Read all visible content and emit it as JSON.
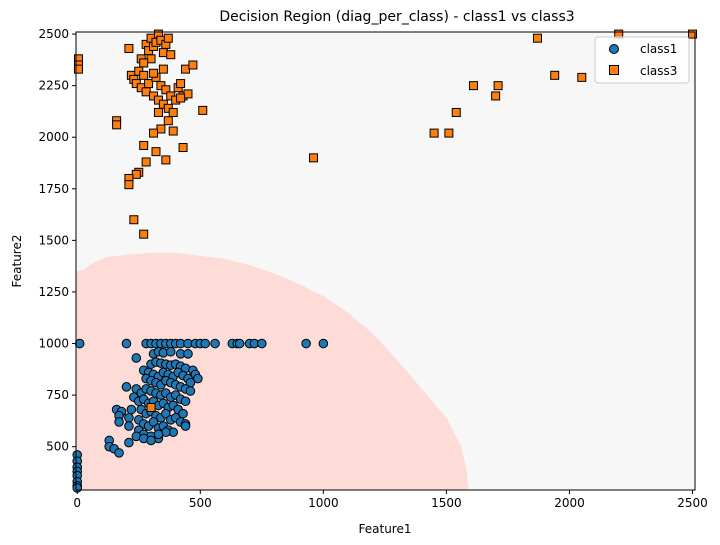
{
  "chart_data": {
    "type": "scatter",
    "title": "Decision Region (diag_per_class) - class1 vs class3",
    "xlabel": "Feature1",
    "ylabel": "Feature2",
    "xlim": [
      -5,
      2510
    ],
    "ylim": [
      290,
      2510
    ],
    "xticks": [
      0,
      500,
      1000,
      1500,
      2000,
      2500
    ],
    "yticks": [
      500,
      750,
      1000,
      1250,
      1500,
      1750,
      2000,
      2250,
      2500
    ],
    "grid": false,
    "legend_position": "top-right",
    "background_color": "#f7f7f7",
    "region": {
      "class": "class1",
      "color": "#fddcd8",
      "boundary": [
        [
          0,
          1350
        ],
        [
          30,
          1360
        ],
        [
          50,
          1380
        ],
        [
          80,
          1400
        ],
        [
          120,
          1420
        ],
        [
          200,
          1430
        ],
        [
          300,
          1440
        ],
        [
          400,
          1440
        ],
        [
          500,
          1425
        ],
        [
          600,
          1410
        ],
        [
          700,
          1380
        ],
        [
          800,
          1340
        ],
        [
          900,
          1290
        ],
        [
          1000,
          1230
        ],
        [
          1100,
          1150
        ],
        [
          1200,
          1050
        ],
        [
          1300,
          920
        ],
        [
          1400,
          780
        ],
        [
          1500,
          640
        ],
        [
          1560,
          500
        ],
        [
          1580,
          400
        ],
        [
          1590,
          290
        ]
      ]
    },
    "series": [
      {
        "name": "class1",
        "color": "#1f77b4",
        "marker": "circle",
        "points": [
          [
            10,
            1000
          ],
          [
            200,
            1000
          ],
          [
            280,
            1000
          ],
          [
            300,
            1000
          ],
          [
            320,
            1000
          ],
          [
            340,
            1000
          ],
          [
            360,
            1000
          ],
          [
            380,
            1000
          ],
          [
            400,
            1000
          ],
          [
            420,
            1000
          ],
          [
            450,
            1000
          ],
          [
            480,
            1000
          ],
          [
            500,
            1000
          ],
          [
            520,
            1000
          ],
          [
            560,
            1000
          ],
          [
            630,
            1000
          ],
          [
            650,
            1000
          ],
          [
            660,
            1000
          ],
          [
            700,
            1000
          ],
          [
            720,
            1000
          ],
          [
            750,
            1000
          ],
          [
            930,
            1000
          ],
          [
            1000,
            1000
          ],
          [
            240,
            930
          ],
          [
            310,
            950
          ],
          [
            330,
            960
          ],
          [
            350,
            955
          ],
          [
            380,
            960
          ],
          [
            420,
            950
          ],
          [
            450,
            950
          ],
          [
            300,
            900
          ],
          [
            320,
            910
          ],
          [
            340,
            905
          ],
          [
            360,
            900
          ],
          [
            380,
            895
          ],
          [
            400,
            900
          ],
          [
            420,
            890
          ],
          [
            440,
            880
          ],
          [
            470,
            870
          ],
          [
            480,
            850
          ],
          [
            490,
            830
          ],
          [
            270,
            870
          ],
          [
            290,
            860
          ],
          [
            310,
            850
          ],
          [
            330,
            840
          ],
          [
            350,
            860
          ],
          [
            370,
            850
          ],
          [
            390,
            840
          ],
          [
            410,
            860
          ],
          [
            430,
            845
          ],
          [
            450,
            830
          ],
          [
            460,
            810
          ],
          [
            280,
            830
          ],
          [
            300,
            820
          ],
          [
            320,
            810
          ],
          [
            340,
            800
          ],
          [
            360,
            820
          ],
          [
            380,
            810
          ],
          [
            400,
            800
          ],
          [
            420,
            790
          ],
          [
            440,
            780
          ],
          [
            460,
            770
          ],
          [
            200,
            790
          ],
          [
            240,
            780
          ],
          [
            260,
            760
          ],
          [
            280,
            780
          ],
          [
            300,
            770
          ],
          [
            320,
            760
          ],
          [
            340,
            750
          ],
          [
            360,
            760
          ],
          [
            380,
            740
          ],
          [
            400,
            750
          ],
          [
            420,
            730
          ],
          [
            440,
            720
          ],
          [
            230,
            740
          ],
          [
            250,
            720
          ],
          [
            270,
            730
          ],
          [
            290,
            710
          ],
          [
            310,
            720
          ],
          [
            330,
            700
          ],
          [
            350,
            710
          ],
          [
            370,
            690
          ],
          [
            390,
            700
          ],
          [
            410,
            680
          ],
          [
            430,
            660
          ],
          [
            160,
            680
          ],
          [
            180,
            670
          ],
          [
            220,
            680
          ],
          [
            260,
            680
          ],
          [
            280,
            660
          ],
          [
            300,
            670
          ],
          [
            320,
            650
          ],
          [
            340,
            640
          ],
          [
            360,
            660
          ],
          [
            380,
            630
          ],
          [
            400,
            640
          ],
          [
            420,
            620
          ],
          [
            440,
            610
          ],
          [
            170,
            650
          ],
          [
            210,
            640
          ],
          [
            250,
            630
          ],
          [
            270,
            610
          ],
          [
            290,
            600
          ],
          [
            310,
            620
          ],
          [
            330,
            590
          ],
          [
            350,
            600
          ],
          [
            370,
            580
          ],
          [
            390,
            570
          ],
          [
            170,
            620
          ],
          [
            210,
            600
          ],
          [
            250,
            580
          ],
          [
            270,
            560
          ],
          [
            300,
            550
          ],
          [
            330,
            540
          ],
          [
            360,
            570
          ],
          [
            440,
            600
          ],
          [
            130,
            530
          ],
          [
            210,
            520
          ],
          [
            240,
            550
          ],
          [
            270,
            540
          ],
          [
            300,
            530
          ],
          [
            330,
            560
          ],
          [
            130,
            500
          ],
          [
            150,
            490
          ],
          [
            170,
            470
          ],
          [
            0,
            460
          ],
          [
            0,
            430
          ],
          [
            0,
            400
          ],
          [
            0,
            380
          ],
          [
            0,
            360
          ],
          [
            0,
            330
          ],
          [
            0,
            310
          ],
          [
            0,
            300
          ]
        ]
      },
      {
        "name": "class3",
        "color": "#ff7f0e",
        "marker": "square",
        "points": [
          [
            5,
            2380
          ],
          [
            5,
            2350
          ],
          [
            5,
            2330
          ],
          [
            210,
            2430
          ],
          [
            220,
            2300
          ],
          [
            230,
            2280
          ],
          [
            240,
            2260
          ],
          [
            250,
            2320
          ],
          [
            260,
            2240
          ],
          [
            270,
            2300
          ],
          [
            280,
            2220
          ],
          [
            290,
            2260
          ],
          [
            300,
            2380
          ],
          [
            310,
            2200
          ],
          [
            320,
            2290
          ],
          [
            330,
            2180
          ],
          [
            340,
            2250
          ],
          [
            350,
            2160
          ],
          [
            360,
            2230
          ],
          [
            370,
            2140
          ],
          [
            380,
            2200
          ],
          [
            390,
            2120
          ],
          [
            400,
            2180
          ],
          [
            410,
            2240
          ],
          [
            420,
            2260
          ],
          [
            430,
            2200
          ],
          [
            440,
            2330
          ],
          [
            450,
            2210
          ],
          [
            470,
            2350
          ],
          [
            280,
            2450
          ],
          [
            290,
            2420
          ],
          [
            300,
            2480
          ],
          [
            310,
            2440
          ],
          [
            320,
            2460
          ],
          [
            330,
            2500
          ],
          [
            340,
            2470
          ],
          [
            350,
            2410
          ],
          [
            360,
            2450
          ],
          [
            370,
            2480
          ],
          [
            380,
            2400
          ],
          [
            260,
            2380
          ],
          [
            270,
            2360
          ],
          [
            350,
            2330
          ],
          [
            310,
            2310
          ],
          [
            330,
            2120
          ],
          [
            370,
            2080
          ],
          [
            340,
            2040
          ],
          [
            310,
            2020
          ],
          [
            390,
            2030
          ],
          [
            420,
            2190
          ],
          [
            510,
            2130
          ],
          [
            160,
            2080
          ],
          [
            160,
            2060
          ],
          [
            430,
            1950
          ],
          [
            270,
            1960
          ],
          [
            320,
            1930
          ],
          [
            360,
            1890
          ],
          [
            280,
            1880
          ],
          [
            250,
            1830
          ],
          [
            240,
            1820
          ],
          [
            210,
            1800
          ],
          [
            210,
            1770
          ],
          [
            230,
            1600
          ],
          [
            270,
            1530
          ],
          [
            300,
            690
          ],
          [
            960,
            1900
          ],
          [
            1450,
            2020
          ],
          [
            1510,
            2020
          ],
          [
            1540,
            2120
          ],
          [
            1610,
            2250
          ],
          [
            1700,
            2200
          ],
          [
            1710,
            2250
          ],
          [
            1870,
            2480
          ],
          [
            1940,
            2300
          ],
          [
            2050,
            2290
          ],
          [
            2200,
            2500
          ],
          [
            2500,
            2500
          ]
        ]
      }
    ]
  }
}
